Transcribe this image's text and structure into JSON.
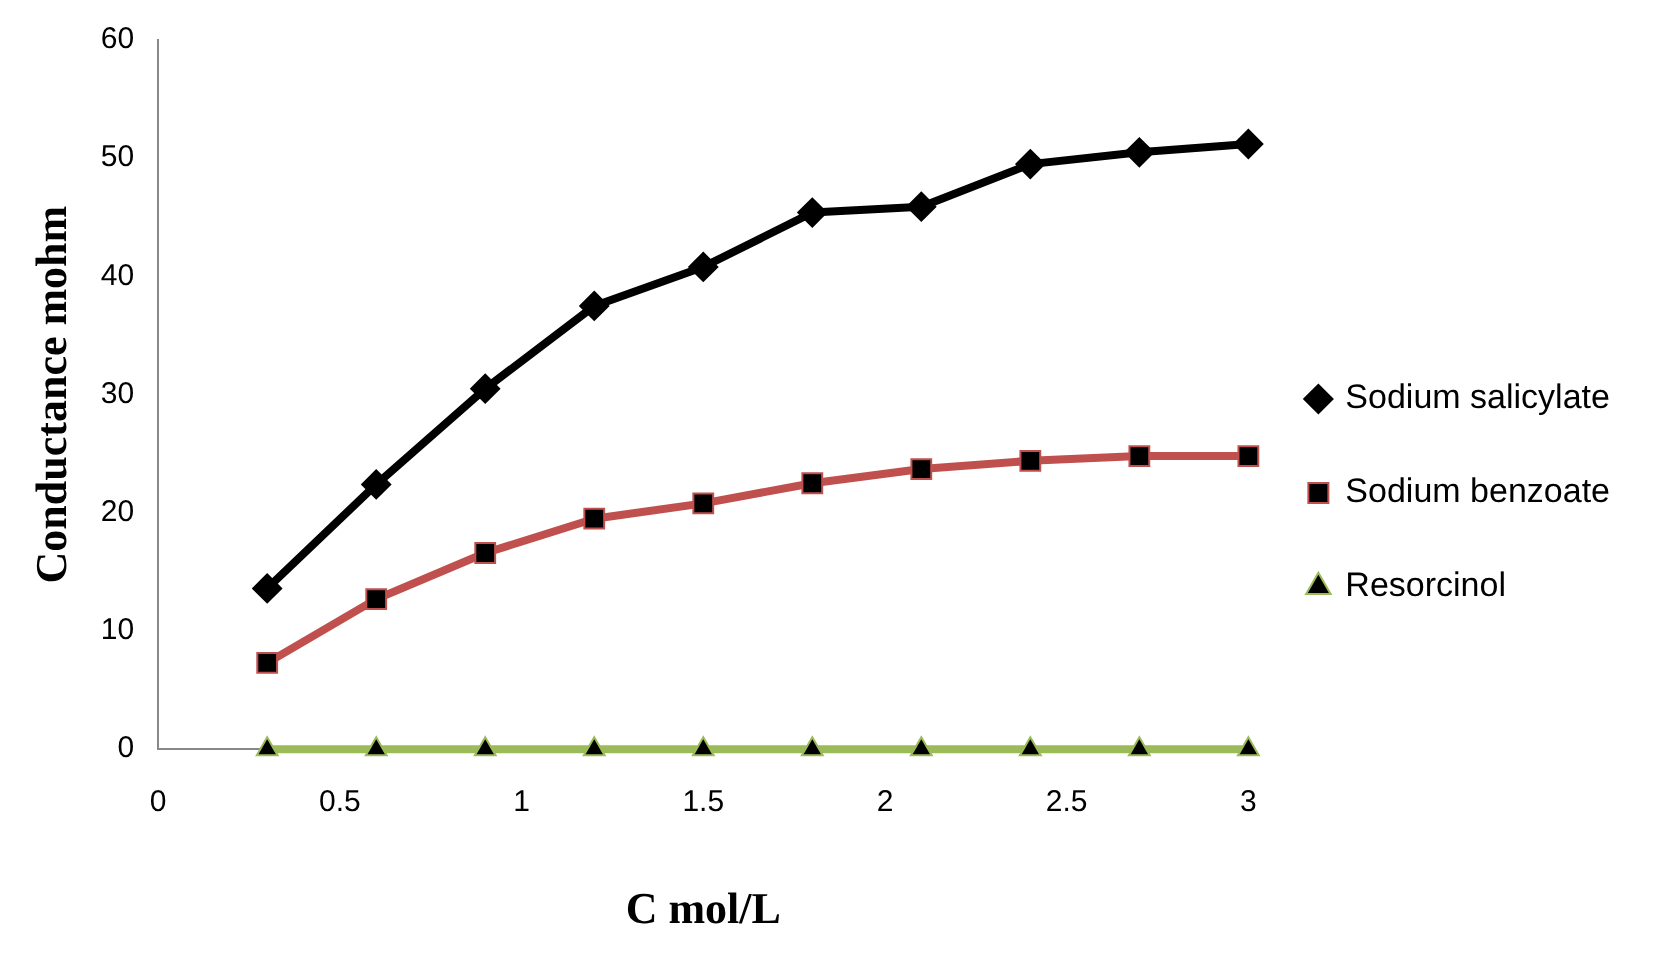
{
  "chart_data": {
    "type": "line",
    "xlabel": "C mol/L",
    "ylabel": "Conductance mohm",
    "x": [
      0.3,
      0.6,
      0.9,
      1.2,
      1.5,
      1.8,
      2.1,
      2.4,
      2.7,
      3.0
    ],
    "series": [
      {
        "name": "Sodium salicylate",
        "color": "#000000",
        "marker": "diamond",
        "values": [
          13.6,
          22.4,
          30.5,
          37.5,
          40.8,
          45.4,
          45.9,
          49.5,
          50.5,
          51.2
        ]
      },
      {
        "name": "Sodium benzoate",
        "color": "#c0504d",
        "marker": "square",
        "values": [
          7.3,
          12.7,
          16.6,
          19.5,
          20.8,
          22.5,
          23.7,
          24.4,
          24.8,
          24.8
        ]
      },
      {
        "name": "Resorcinol",
        "color": "#9bbb59",
        "marker": "triangle",
        "values": [
          0,
          0,
          0,
          0,
          0,
          0,
          0,
          0,
          0,
          0
        ]
      }
    ],
    "xlim": [
      0,
      3
    ],
    "xticks": [
      0,
      0.5,
      1,
      1.5,
      2,
      2.5,
      3
    ],
    "ylim": [
      0,
      60
    ],
    "yticks": [
      0,
      10,
      20,
      30,
      40,
      50,
      60
    ],
    "grid": false,
    "legend": "right"
  }
}
